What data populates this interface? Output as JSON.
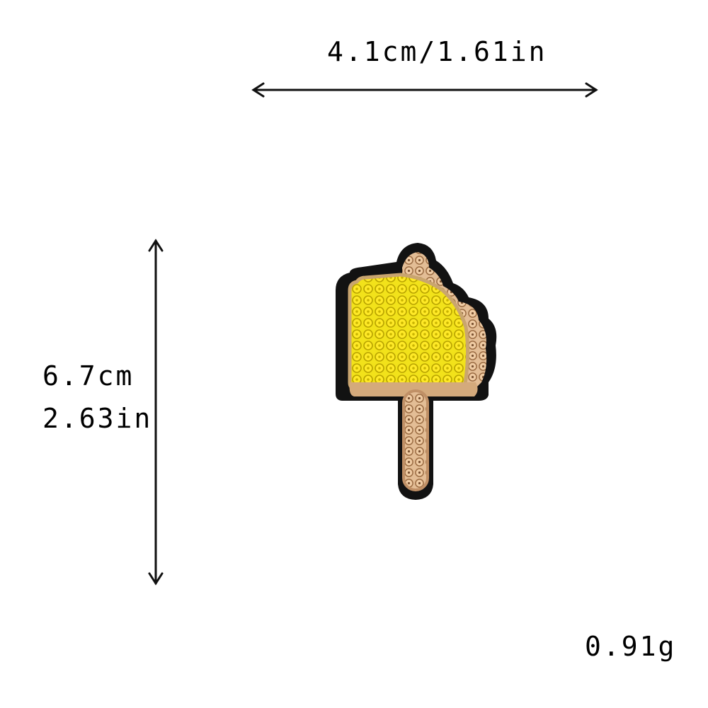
{
  "dimensions": {
    "width_label": "4.1cm/1.61in",
    "height_cm": "6.7cm",
    "height_in": "2.63in",
    "weight": "0.91g"
  },
  "product": {
    "icon": "popsicle-sequin-patch-icon",
    "colors": {
      "ice_cream": "#f4e51a",
      "stick": "#d9b08a",
      "backing": "#111111",
      "bite_edge": "#c69a6e"
    }
  }
}
